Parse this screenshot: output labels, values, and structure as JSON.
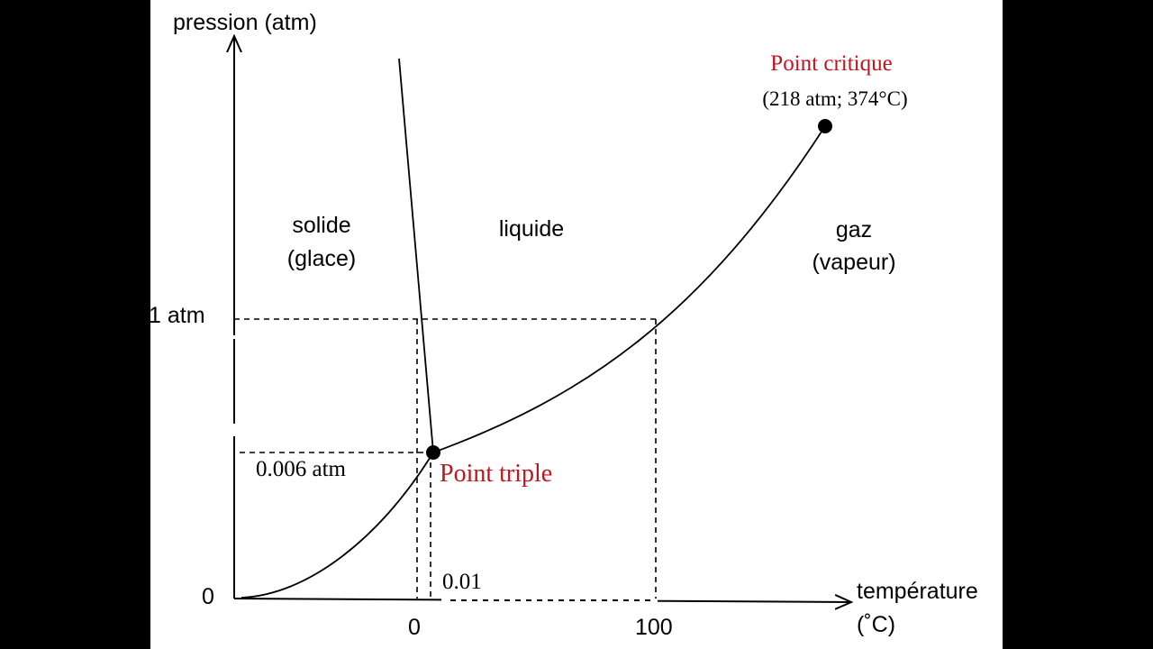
{
  "axes": {
    "y_label": "pression (atm)",
    "x_label_line1": "température",
    "x_label_line2": "(˚C)",
    "origin_label": "0"
  },
  "ticks": {
    "p_one_atm": "1 atm",
    "p_triple": "0.006 atm",
    "t_zero": "0",
    "t_triple": "0.01",
    "t_hundred": "100"
  },
  "regions": {
    "solid_line1": "solide",
    "solid_line2": "(glace)",
    "liquid": "liquide",
    "gas_line1": "gaz",
    "gas_line2": "(vapeur)"
  },
  "points": {
    "critical_label": "Point critique",
    "critical_values": "(218 atm; 374°C)",
    "triple_label": "Point triple"
  },
  "colors": {
    "accent_red": "#c0141e",
    "frame": "#000000",
    "panel": "#ffffff"
  }
}
